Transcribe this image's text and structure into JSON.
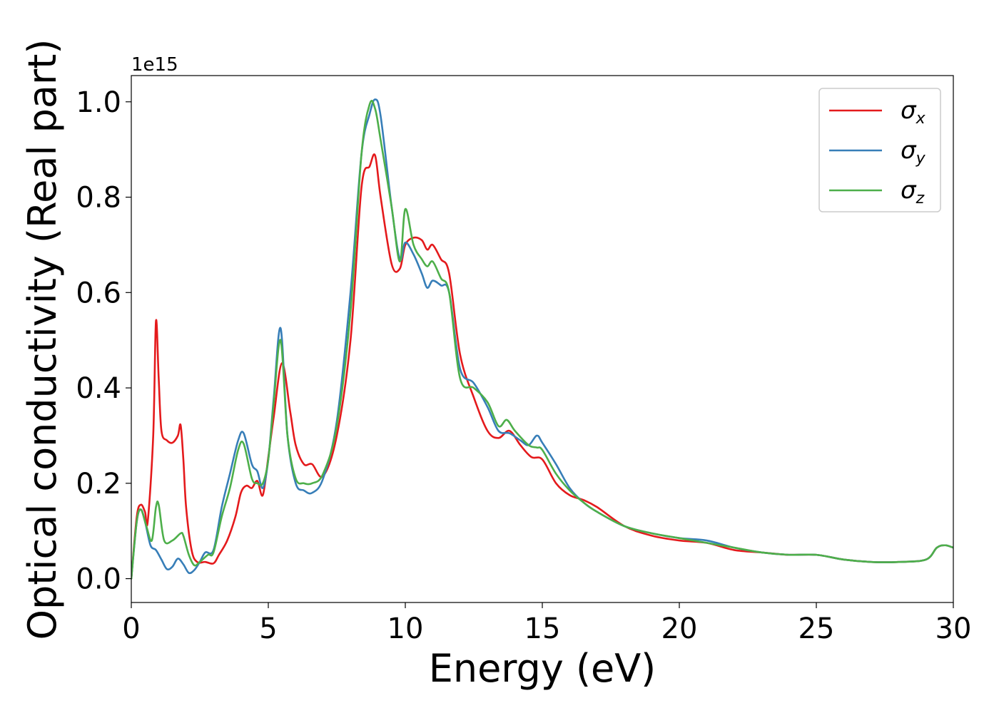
{
  "chart_data": {
    "type": "line",
    "title": "",
    "xlabel": "Energy (eV)",
    "ylabel": "Optical conductivity (Real part)",
    "y_offset_label": "1e15",
    "xlim": [
      0,
      30
    ],
    "ylim": [
      -0.05,
      1.055
    ],
    "xticks": [
      0,
      5,
      10,
      15,
      20,
      25,
      30
    ],
    "xtick_labels": [
      "0",
      "5",
      "10",
      "15",
      "20",
      "25",
      "30"
    ],
    "yticks": [
      0.0,
      0.2,
      0.4,
      0.6,
      0.8,
      1.0
    ],
    "ytick_labels": [
      "0.0",
      "0.2",
      "0.4",
      "0.6",
      "0.8",
      "1.0"
    ],
    "grid": false,
    "legend_position": "top-right",
    "series": [
      {
        "name": "σx",
        "symbol": "σ",
        "subscript": "x",
        "color": "#e41a1c",
        "x": [
          0,
          0.2,
          0.35,
          0.5,
          0.6,
          0.8,
          0.9,
          1.0,
          1.1,
          1.3,
          1.5,
          1.7,
          1.8,
          1.9,
          2.0,
          2.2,
          2.4,
          2.7,
          3.0,
          3.2,
          3.5,
          3.8,
          4.0,
          4.2,
          4.4,
          4.6,
          4.8,
          5.0,
          5.2,
          5.5,
          5.8,
          6.0,
          6.3,
          6.6,
          7.0,
          7.5,
          8.0,
          8.4,
          8.7,
          8.9,
          9.1,
          9.5,
          9.8,
          10.0,
          10.3,
          10.6,
          10.8,
          11.0,
          11.3,
          11.6,
          12.0,
          12.5,
          13.0,
          13.4,
          13.8,
          14.2,
          14.6,
          15.0,
          15.5,
          16.0,
          16.5,
          17.0,
          18.0,
          19.0,
          20.0,
          21.0,
          22.0,
          23.0,
          24.0,
          25.0,
          26.0,
          27.0,
          28.0,
          29.0,
          29.4,
          29.7,
          30.0
        ],
        "y": [
          0.0,
          0.13,
          0.155,
          0.14,
          0.12,
          0.3,
          0.54,
          0.42,
          0.31,
          0.29,
          0.285,
          0.3,
          0.322,
          0.25,
          0.15,
          0.06,
          0.035,
          0.035,
          0.032,
          0.05,
          0.08,
          0.13,
          0.18,
          0.195,
          0.19,
          0.205,
          0.175,
          0.255,
          0.34,
          0.452,
          0.35,
          0.28,
          0.24,
          0.24,
          0.215,
          0.3,
          0.5,
          0.82,
          0.865,
          0.887,
          0.8,
          0.66,
          0.65,
          0.7,
          0.715,
          0.71,
          0.69,
          0.7,
          0.67,
          0.64,
          0.47,
          0.38,
          0.31,
          0.295,
          0.31,
          0.28,
          0.255,
          0.25,
          0.2,
          0.175,
          0.165,
          0.15,
          0.11,
          0.09,
          0.08,
          0.075,
          0.06,
          0.055,
          0.05,
          0.05,
          0.04,
          0.035,
          0.035,
          0.04,
          0.065,
          0.07,
          0.065
        ]
      },
      {
        "name": "σy",
        "symbol": "σ",
        "subscript": "y",
        "color": "#377eb8",
        "x": [
          0,
          0.2,
          0.35,
          0.5,
          0.7,
          0.9,
          1.1,
          1.3,
          1.5,
          1.7,
          1.9,
          2.1,
          2.3,
          2.5,
          2.7,
          3.0,
          3.3,
          3.6,
          3.9,
          4.1,
          4.4,
          4.6,
          4.8,
          5.0,
          5.2,
          5.45,
          5.7,
          6.0,
          6.3,
          6.6,
          7.0,
          7.5,
          8.0,
          8.4,
          8.7,
          8.9,
          9.1,
          9.5,
          9.8,
          10.0,
          10.3,
          10.6,
          10.8,
          11.0,
          11.3,
          11.6,
          12.0,
          12.5,
          13.0,
          13.4,
          13.8,
          14.2,
          14.5,
          14.8,
          15.0,
          15.5,
          16.0,
          16.5,
          17.0,
          18.0,
          19.0,
          20.0,
          21.0,
          22.0,
          23.0,
          24.0,
          25.0,
          26.0,
          27.0,
          28.0,
          29.0,
          29.4,
          29.7,
          30.0
        ],
        "y": [
          0.0,
          0.12,
          0.145,
          0.12,
          0.07,
          0.06,
          0.04,
          0.02,
          0.025,
          0.042,
          0.03,
          0.012,
          0.018,
          0.035,
          0.055,
          0.06,
          0.15,
          0.22,
          0.29,
          0.305,
          0.24,
          0.225,
          0.19,
          0.25,
          0.38,
          0.525,
          0.3,
          0.2,
          0.185,
          0.18,
          0.21,
          0.33,
          0.6,
          0.89,
          0.975,
          1.005,
          0.97,
          0.78,
          0.67,
          0.705,
          0.68,
          0.64,
          0.61,
          0.625,
          0.615,
          0.6,
          0.44,
          0.41,
          0.36,
          0.31,
          0.305,
          0.29,
          0.28,
          0.3,
          0.285,
          0.24,
          0.19,
          0.16,
          0.14,
          0.11,
          0.095,
          0.085,
          0.08,
          0.065,
          0.055,
          0.05,
          0.05,
          0.04,
          0.035,
          0.035,
          0.04,
          0.065,
          0.07,
          0.065
        ]
      },
      {
        "name": "σz",
        "symbol": "σ",
        "subscript": "z",
        "color": "#4daf4a",
        "x": [
          0,
          0.2,
          0.35,
          0.55,
          0.75,
          0.9,
          1.0,
          1.2,
          1.5,
          1.8,
          1.9,
          2.1,
          2.3,
          2.5,
          2.8,
          3.0,
          3.3,
          3.6,
          3.9,
          4.1,
          4.4,
          4.6,
          4.8,
          5.0,
          5.2,
          5.45,
          5.7,
          6.0,
          6.3,
          6.6,
          7.0,
          7.5,
          8.0,
          8.4,
          8.7,
          8.9,
          9.1,
          9.5,
          9.8,
          10.0,
          10.3,
          10.6,
          10.8,
          11.0,
          11.3,
          11.6,
          12.0,
          12.5,
          13.0,
          13.4,
          13.7,
          14.0,
          14.5,
          14.8,
          15.0,
          15.5,
          16.0,
          16.5,
          17.0,
          18.0,
          19.0,
          20.0,
          21.0,
          22.0,
          23.0,
          24.0,
          25.0,
          26.0,
          27.0,
          28.0,
          29.0,
          29.4,
          29.7,
          30.0
        ],
        "y": [
          0.0,
          0.12,
          0.145,
          0.11,
          0.08,
          0.15,
          0.155,
          0.08,
          0.08,
          0.095,
          0.09,
          0.05,
          0.028,
          0.035,
          0.05,
          0.055,
          0.13,
          0.19,
          0.27,
          0.283,
          0.21,
          0.2,
          0.2,
          0.25,
          0.37,
          0.5,
          0.3,
          0.21,
          0.2,
          0.2,
          0.22,
          0.32,
          0.56,
          0.89,
          0.995,
          0.985,
          0.92,
          0.78,
          0.665,
          0.775,
          0.7,
          0.67,
          0.655,
          0.665,
          0.63,
          0.6,
          0.42,
          0.4,
          0.37,
          0.32,
          0.333,
          0.31,
          0.28,
          0.275,
          0.27,
          0.22,
          0.185,
          0.16,
          0.14,
          0.11,
          0.095,
          0.085,
          0.075,
          0.065,
          0.055,
          0.05,
          0.05,
          0.04,
          0.035,
          0.035,
          0.04,
          0.065,
          0.07,
          0.065
        ]
      }
    ]
  }
}
